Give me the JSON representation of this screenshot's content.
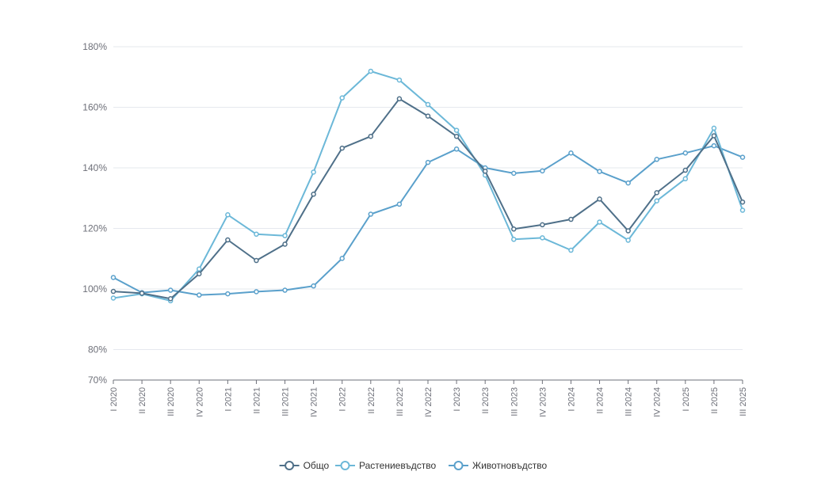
{
  "chart_data": {
    "type": "line",
    "title": "",
    "xlabel": "",
    "ylabel": "",
    "ylim": [
      70,
      180
    ],
    "y_ticks": [
      70,
      80,
      100,
      120,
      140,
      160,
      180
    ],
    "y_tick_labels": [
      "70%",
      "80%",
      "100%",
      "120%",
      "140%",
      "160%",
      "180%"
    ],
    "grid": "horizontal",
    "legend_position": "bottom",
    "categories": [
      "I 2020",
      "II 2020",
      "III 2020",
      "IV 2020",
      "I 2021",
      "II 2021",
      "III 2021",
      "IV 2021",
      "I 2022",
      "II 2022",
      "III 2022",
      "IV 2022",
      "I 2023",
      "II 2023",
      "III 2023",
      "IV 2023",
      "I 2024",
      "II 2024",
      "III 2024",
      "IV 2024",
      "I 2025",
      "II 2025",
      "III 2025"
    ],
    "series": [
      {
        "name": "Общо",
        "color": "#4f7089",
        "values": [
          99.2,
          98.6,
          96.8,
          105.0,
          116.2,
          109.4,
          114.8,
          131.3,
          146.5,
          150.4,
          162.8,
          157.1,
          150.4,
          138.9,
          119.8,
          121.2,
          123.0,
          129.7,
          119.2,
          131.8,
          139.2,
          150.6,
          128.7
        ]
      },
      {
        "name": "Растениевъдство",
        "color": "#6cb8d8",
        "values": [
          97.0,
          98.4,
          96.1,
          106.6,
          124.5,
          118.1,
          117.6,
          138.6,
          163.1,
          171.9,
          169.0,
          160.9,
          152.4,
          137.6,
          116.4,
          116.9,
          112.8,
          122.1,
          116.1,
          129.1,
          136.4,
          153.1,
          126.0
        ]
      },
      {
        "name": "Животновъдство",
        "color": "#5aa0cb",
        "values": [
          103.8,
          98.8,
          99.6,
          98.0,
          98.4,
          99.1,
          99.6,
          101.0,
          110.1,
          124.7,
          128.0,
          141.8,
          146.2,
          140.0,
          138.2,
          139.0,
          144.9,
          138.8,
          135.0,
          142.8,
          144.9,
          147.3,
          143.5
        ]
      }
    ]
  }
}
